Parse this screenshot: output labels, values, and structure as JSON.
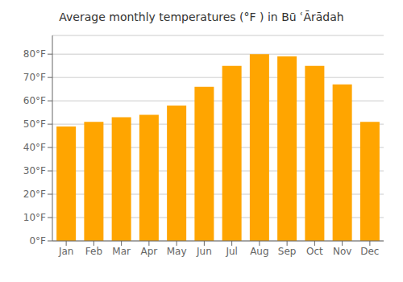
{
  "chart_data": {
    "type": "bar",
    "title": "Average monthly temperatures (°F ) in Bū ʿĀrādah",
    "categories": [
      "Jan",
      "Feb",
      "Mar",
      "Apr",
      "May",
      "Jun",
      "Jul",
      "Aug",
      "Sep",
      "Oct",
      "Nov",
      "Dec"
    ],
    "values": [
      49,
      51,
      53,
      54,
      58,
      66,
      75,
      80,
      79,
      75,
      67,
      51
    ],
    "color": "#FFA500",
    "ylim": [
      0,
      88
    ],
    "yticks": [
      {
        "value": 0,
        "label": "0°F"
      },
      {
        "value": 10,
        "label": "10°F"
      },
      {
        "value": 20,
        "label": "20°F"
      },
      {
        "value": 30,
        "label": "30°F"
      },
      {
        "value": 40,
        "label": "40°F"
      },
      {
        "value": 50,
        "label": "50°F"
      },
      {
        "value": 60,
        "label": "60°F"
      },
      {
        "value": 70,
        "label": "70°F"
      },
      {
        "value": 80,
        "label": "80°F"
      }
    ],
    "grid": true
  }
}
